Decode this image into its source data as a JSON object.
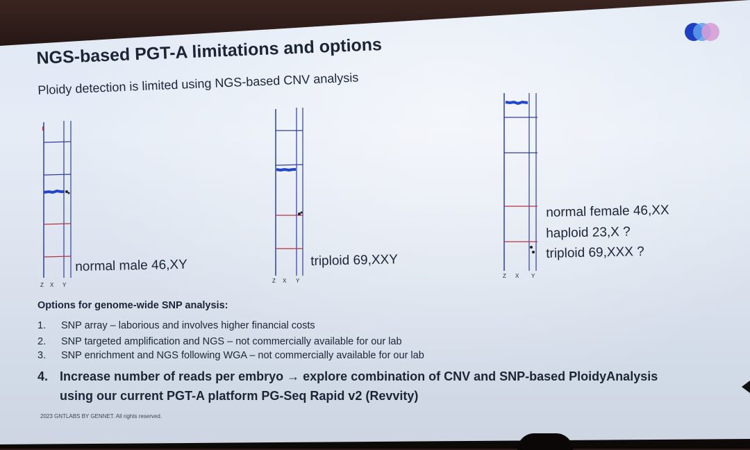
{
  "slide": {
    "title": "NGS-based PGT-A limitations and options",
    "subtitle": "Ploidy detection is limited using NGS-based CNV analysis",
    "plots": [
      {
        "axis_labels": [
          "Z",
          "X",
          "Y"
        ],
        "caption": "normal male 46,XY"
      },
      {
        "axis_labels": [
          "Z",
          "X",
          "Y"
        ],
        "caption": "triploid 69,XXY"
      },
      {
        "axis_labels": [
          "Z",
          "X",
          "Y"
        ],
        "captions": [
          "normal female 46,XX",
          "haploid 23,X ?",
          "triploid 69,XXX ?"
        ]
      }
    ],
    "options_heading": "Options for genome-wide SNP analysis:",
    "options": [
      {
        "num": "1.",
        "text": "SNP array – laborious and involves higher financial costs"
      },
      {
        "num": "2.",
        "text": "SNP targeted amplification and NGS – not commercially available for our lab"
      },
      {
        "num": "3.",
        "text": "SNP enrichment and NGS following WGA – not commercially available for our lab"
      }
    ],
    "option4": {
      "num": "4.",
      "line1": "Increase number of reads per embryo → explore combination of CNV and SNP-based PloidyAnalysis",
      "line2": "using our current PGT-A platform PG-Seq Rapid v2 (Revvity)"
    },
    "footer": "2023 GNTLABS BY GENNET. All rights reserved."
  },
  "colors": {
    "blue_line": "#2c3f9c",
    "red_line": "#b4333f",
    "dots": "#2346c8",
    "logo": [
      "#1e3fbf",
      "#5e9ff0",
      "#d69ad4"
    ]
  },
  "icons": [
    "brand-logo-circles-icon",
    "mouse-cursor-icon"
  ]
}
